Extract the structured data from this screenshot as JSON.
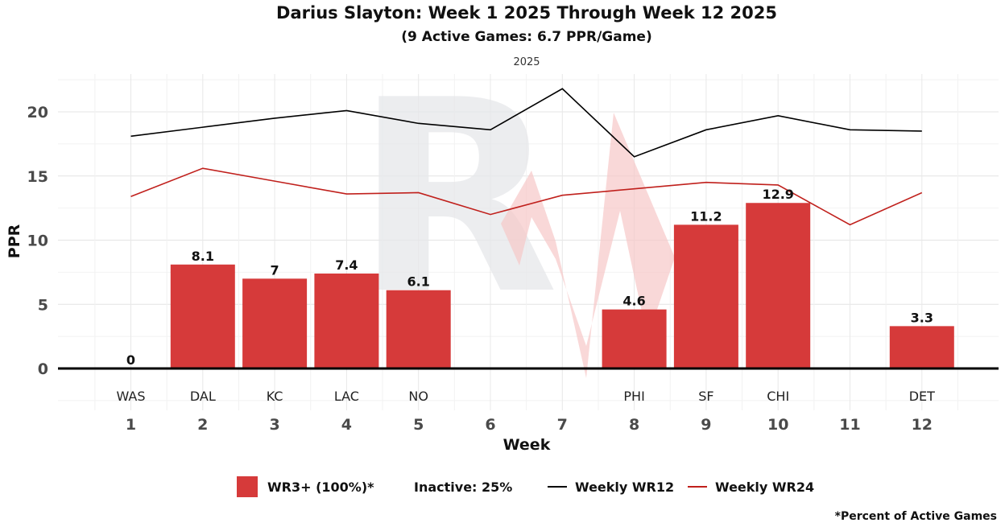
{
  "title": "Darius Slayton: Week 1 2025 Through Week 12 2025",
  "subtitle": "(9 Active Games: 6.7 PPR/Game)",
  "facet_label": "2025",
  "footnote": "*Percent of Active Games",
  "watermark": "RW",
  "legend": {
    "bar_label": "WR3+ (100%)*",
    "inactive_label": "Inactive: 25%",
    "wr12_label": "Weekly WR12",
    "wr24_label": "Weekly WR24"
  },
  "colors": {
    "bar": "#d63a3a",
    "wr12": "#000000",
    "wr24": "#c0201c",
    "watermark_r": "#e6e7ea",
    "watermark_w": "#f7c8c8"
  },
  "chart_data": {
    "type": "bar",
    "xlabel": "Week",
    "ylabel": "PPR",
    "ylim": [
      -3.2,
      23
    ],
    "yticks": [
      0,
      5,
      10,
      15,
      20
    ],
    "weeks": [
      1,
      2,
      3,
      4,
      5,
      6,
      7,
      8,
      9,
      10,
      11,
      12
    ],
    "opponents": [
      "WAS",
      "DAL",
      "KC",
      "LAC",
      "NO",
      "",
      "",
      "PHI",
      "SF",
      "CHI",
      "",
      "DET"
    ],
    "bars": [
      {
        "week": 1,
        "value": 0,
        "label": "0"
      },
      {
        "week": 2,
        "value": 8.1,
        "label": "8.1"
      },
      {
        "week": 3,
        "value": 7,
        "label": "7"
      },
      {
        "week": 4,
        "value": 7.4,
        "label": "7.4"
      },
      {
        "week": 5,
        "value": 6.1,
        "label": "6.1"
      },
      {
        "week": 8,
        "value": 4.6,
        "label": "4.6"
      },
      {
        "week": 9,
        "value": 11.2,
        "label": "11.2"
      },
      {
        "week": 10,
        "value": 12.9,
        "label": "12.9"
      },
      {
        "week": 12,
        "value": 3.3,
        "label": "3.3"
      }
    ],
    "series": [
      {
        "name": "Weekly WR12",
        "values": [
          18.1,
          18.8,
          19.5,
          20.1,
          19.1,
          18.6,
          21.8,
          16.5,
          18.6,
          19.7,
          18.6,
          18.5
        ]
      },
      {
        "name": "Weekly WR24",
        "values": [
          13.4,
          15.6,
          14.6,
          13.6,
          13.7,
          12.0,
          13.5,
          14.0,
          14.5,
          14.3,
          11.2,
          13.7
        ]
      }
    ]
  }
}
